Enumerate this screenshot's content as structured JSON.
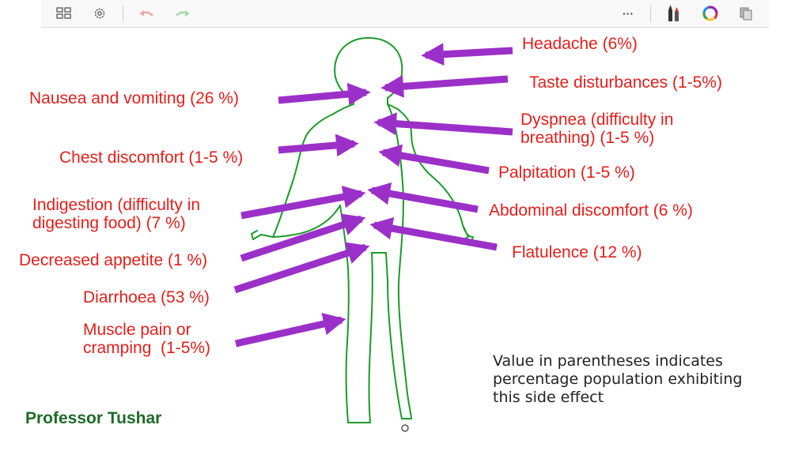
{
  "toolbar": {
    "more_label": "···"
  },
  "labels": {
    "headache": "Headache (6%)",
    "taste": "Taste disturbances (1-5%)",
    "nausea": "Nausea and vomiting (26 %)",
    "dyspnea": "Dyspnea (difficulty in\nbreathing) (1-5 %)",
    "chest": "Chest discomfort (1-5 %)",
    "palpitation": "Palpitation (1-5 %)",
    "indigestion": "Indigestion (difficulty in\ndigesting food) (7 %)",
    "abdominal": "Abdominal discomfort (6 %)",
    "appetite": "Decreased appetite (1 %)",
    "flatulence": "Flatulence (12 %)",
    "diarrhoea": "Diarrhoea (53 %)",
    "muscle": "Muscle pain or\ncramping  (1-5%)"
  },
  "note": "Value in parentheses indicates\npercentage population exhibiting\nthis side effect",
  "author": "Professor Tushar",
  "colors": {
    "label_red": "#e0201c",
    "arrow_purple": "#9b30c8",
    "body_green": "#1a9a2a",
    "author_green": "#1e6b2a"
  },
  "icons": [
    "grid-icon",
    "settings-gear-icon",
    "undo-arrow-icon",
    "redo-arrow-icon",
    "more-options-icon",
    "pens-icon",
    "color-wheel-icon",
    "copy-pages-icon"
  ]
}
